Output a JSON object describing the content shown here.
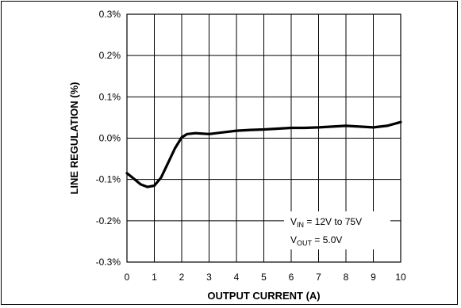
{
  "chart_data": {
    "type": "line",
    "title": "",
    "xlabel": "OUTPUT CURRENT (A)",
    "ylabel": "LINE REGULATION (%)",
    "xlim": [
      0,
      10
    ],
    "ylim": [
      -0.3,
      0.3
    ],
    "x_ticks": [
      "0",
      "1",
      "2",
      "3",
      "4",
      "5",
      "6",
      "7",
      "8",
      "9",
      "10"
    ],
    "y_ticks": [
      "0.3%",
      "0.2%",
      "0.1%",
      "0.0%",
      "-0.1%",
      "-0.2%",
      "-0.3%"
    ],
    "grid": true,
    "series": [
      {
        "color": "#000000",
        "x": [
          0,
          0.25,
          0.5,
          0.75,
          1.0,
          1.25,
          1.5,
          1.75,
          2.0,
          2.2,
          2.5,
          3.0,
          3.5,
          4.0,
          4.5,
          5.0,
          5.5,
          6.0,
          6.5,
          7.0,
          7.5,
          8.0,
          8.5,
          9.0,
          9.5,
          10.0
        ],
        "y": [
          -0.085,
          -0.098,
          -0.112,
          -0.118,
          -0.115,
          -0.095,
          -0.06,
          -0.025,
          0.002,
          0.01,
          0.012,
          0.01,
          0.014,
          0.018,
          0.02,
          0.021,
          0.023,
          0.025,
          0.025,
          0.026,
          0.028,
          0.03,
          0.028,
          0.026,
          0.03,
          0.039
        ]
      }
    ],
    "annotations": {
      "vin": {
        "main": "V",
        "sub": "IN",
        "rest": " = 12V to 75V"
      },
      "vout": {
        "main": "V",
        "sub": "OUT",
        "rest": " = 5.0V"
      }
    }
  }
}
